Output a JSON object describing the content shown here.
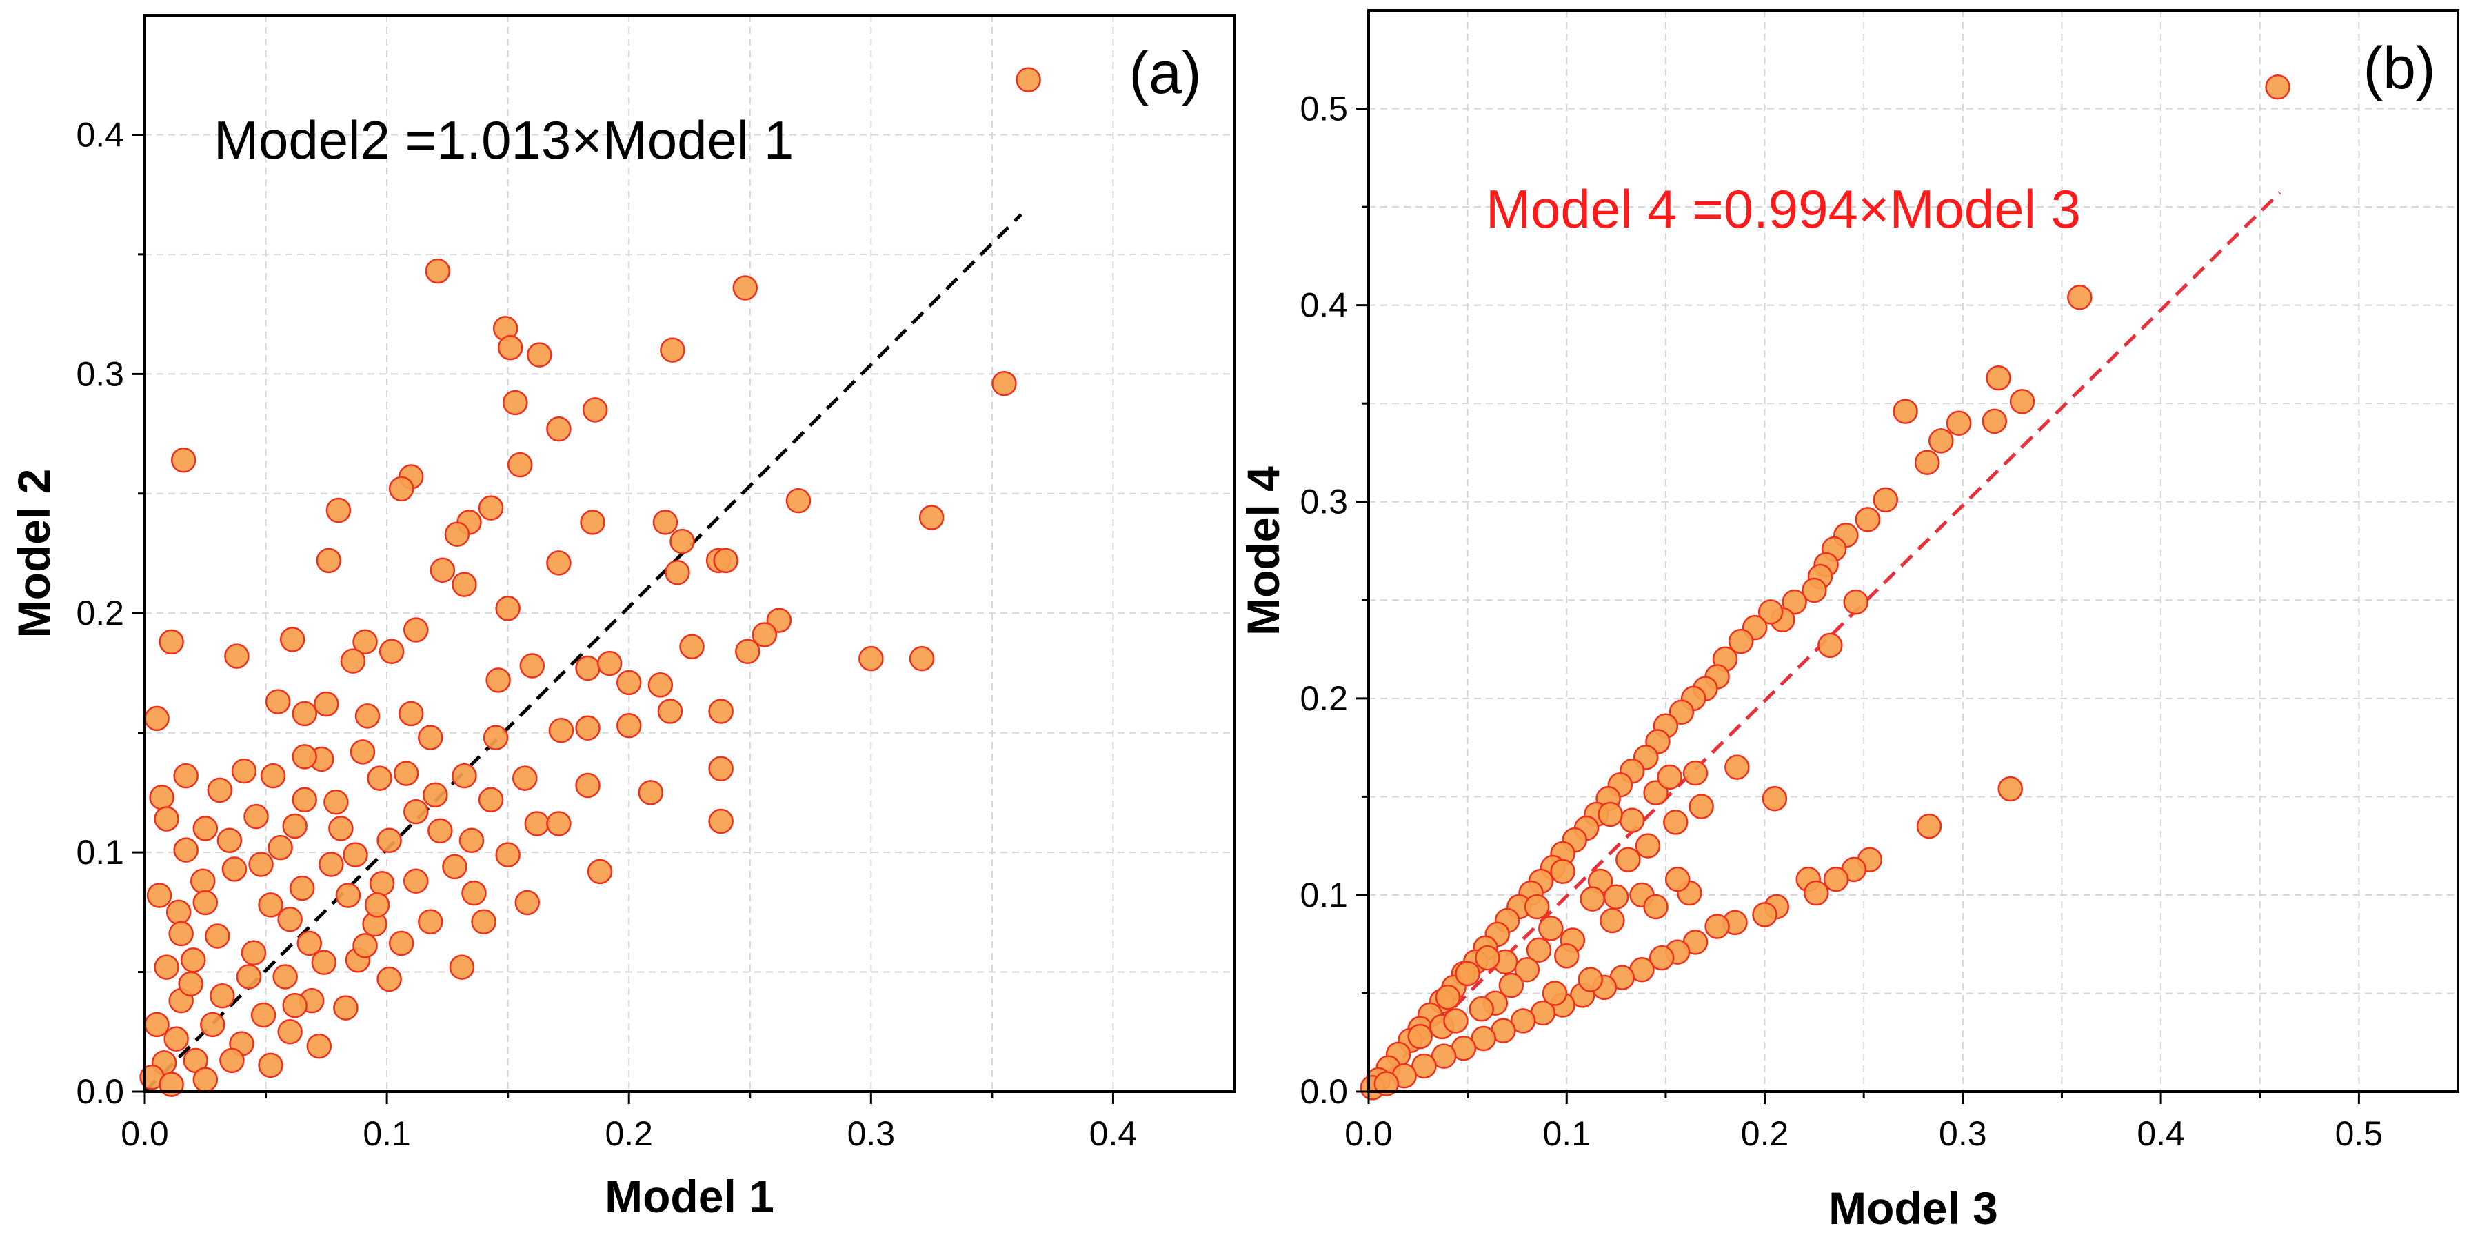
{
  "chart_data": [
    {
      "type": "scatter",
      "panel_label": "(a)",
      "xlabel": "Model 1",
      "ylabel": "Model 2",
      "xlim": [
        0,
        0.45
      ],
      "ylim": [
        0,
        0.45
      ],
      "xticks": [
        0.0,
        0.1,
        0.2,
        0.3,
        0.4
      ],
      "yticks": [
        0.0,
        0.1,
        0.2,
        0.3,
        0.4
      ],
      "xtick_labels": [
        "0.0",
        "0.1",
        "0.2",
        "0.3",
        "0.4"
      ],
      "ytick_labels": [
        "0.0",
        "0.1",
        "0.2",
        "0.3",
        "0.4"
      ],
      "grid": true,
      "annotation": {
        "text": "Model2 =1.013×Model 1",
        "color": "#000000"
      },
      "fit_line": {
        "slope": 1.013,
        "x_range": [
          0,
          0.362
        ],
        "color": "#000000",
        "style": "dashed"
      },
      "marker": {
        "fill": "#f7a04c",
        "edge": "#f0301c"
      },
      "points": [
        [
          0.365,
          0.423
        ],
        [
          0.121,
          0.343
        ],
        [
          0.248,
          0.336
        ],
        [
          0.149,
          0.319
        ],
        [
          0.151,
          0.311
        ],
        [
          0.163,
          0.308
        ],
        [
          0.218,
          0.31
        ],
        [
          0.355,
          0.296
        ],
        [
          0.153,
          0.288
        ],
        [
          0.186,
          0.285
        ],
        [
          0.171,
          0.277
        ],
        [
          0.016,
          0.264
        ],
        [
          0.155,
          0.262
        ],
        [
          0.11,
          0.257
        ],
        [
          0.106,
          0.252
        ],
        [
          0.27,
          0.247
        ],
        [
          0.08,
          0.243
        ],
        [
          0.143,
          0.244
        ],
        [
          0.134,
          0.238
        ],
        [
          0.325,
          0.24
        ],
        [
          0.215,
          0.238
        ],
        [
          0.185,
          0.238
        ],
        [
          0.129,
          0.233
        ],
        [
          0.222,
          0.23
        ],
        [
          0.171,
          0.221
        ],
        [
          0.076,
          0.222
        ],
        [
          0.237,
          0.222
        ],
        [
          0.24,
          0.222
        ],
        [
          0.123,
          0.218
        ],
        [
          0.22,
          0.217
        ],
        [
          0.132,
          0.212
        ],
        [
          0.15,
          0.202
        ],
        [
          0.262,
          0.197
        ],
        [
          0.256,
          0.191
        ],
        [
          0.112,
          0.193
        ],
        [
          0.091,
          0.188
        ],
        [
          0.061,
          0.189
        ],
        [
          0.011,
          0.188
        ],
        [
          0.086,
          0.18
        ],
        [
          0.249,
          0.184
        ],
        [
          0.226,
          0.186
        ],
        [
          0.102,
          0.184
        ],
        [
          0.038,
          0.182
        ],
        [
          0.3,
          0.181
        ],
        [
          0.321,
          0.181
        ],
        [
          0.16,
          0.178
        ],
        [
          0.183,
          0.177
        ],
        [
          0.146,
          0.172
        ],
        [
          0.2,
          0.171
        ],
        [
          0.213,
          0.17
        ],
        [
          0.055,
          0.163
        ],
        [
          0.075,
          0.162
        ],
        [
          0.11,
          0.158
        ],
        [
          0.092,
          0.157
        ],
        [
          0.066,
          0.158
        ],
        [
          0.2,
          0.153
        ],
        [
          0.217,
          0.159
        ],
        [
          0.238,
          0.159
        ],
        [
          0.005,
          0.156
        ],
        [
          0.183,
          0.152
        ],
        [
          0.172,
          0.151
        ],
        [
          0.145,
          0.148
        ],
        [
          0.118,
          0.148
        ],
        [
          0.209,
          0.125
        ],
        [
          0.183,
          0.128
        ],
        [
          0.238,
          0.135
        ],
        [
          0.238,
          0.113
        ],
        [
          0.188,
          0.092
        ],
        [
          0.162,
          0.112
        ],
        [
          0.053,
          0.132
        ],
        [
          0.031,
          0.126
        ],
        [
          0.007,
          0.123
        ],
        [
          0.009,
          0.114
        ],
        [
          0.017,
          0.101
        ],
        [
          0.062,
          0.111
        ],
        [
          0.041,
          0.134
        ],
        [
          0.073,
          0.139
        ],
        [
          0.097,
          0.131
        ],
        [
          0.132,
          0.132
        ],
        [
          0.157,
          0.131
        ],
        [
          0.143,
          0.122
        ],
        [
          0.122,
          0.109
        ],
        [
          0.101,
          0.105
        ],
        [
          0.087,
          0.099
        ],
        [
          0.136,
          0.083
        ],
        [
          0.158,
          0.079
        ],
        [
          0.106,
          0.062
        ],
        [
          0.131,
          0.052
        ],
        [
          0.079,
          0.121
        ],
        [
          0.035,
          0.105
        ],
        [
          0.15,
          0.099
        ],
        [
          0.014,
          0.075
        ],
        [
          0.009,
          0.052
        ],
        [
          0.006,
          0.082
        ],
        [
          0.024,
          0.088
        ],
        [
          0.048,
          0.095
        ],
        [
          0.065,
          0.085
        ],
        [
          0.084,
          0.082
        ],
        [
          0.112,
          0.088
        ],
        [
          0.128,
          0.094
        ],
        [
          0.06,
          0.072
        ],
        [
          0.095,
          0.07
        ],
        [
          0.118,
          0.071
        ],
        [
          0.14,
          0.071
        ],
        [
          0.03,
          0.065
        ],
        [
          0.045,
          0.058
        ],
        [
          0.074,
          0.054
        ],
        [
          0.052,
          0.078
        ],
        [
          0.02,
          0.055
        ],
        [
          0.032,
          0.04
        ],
        [
          0.058,
          0.048
        ],
        [
          0.088,
          0.055
        ],
        [
          0.101,
          0.047
        ],
        [
          0.069,
          0.038
        ],
        [
          0.049,
          0.032
        ],
        [
          0.083,
          0.035
        ],
        [
          0.028,
          0.028
        ],
        [
          0.04,
          0.02
        ],
        [
          0.06,
          0.025
        ],
        [
          0.015,
          0.038
        ],
        [
          0.013,
          0.022
        ],
        [
          0.008,
          0.012
        ],
        [
          0.021,
          0.013
        ],
        [
          0.036,
          0.013
        ],
        [
          0.052,
          0.011
        ],
        [
          0.072,
          0.019
        ],
        [
          0.005,
          0.028
        ],
        [
          0.003,
          0.006
        ],
        [
          0.011,
          0.003
        ],
        [
          0.025,
          0.005
        ],
        [
          0.043,
          0.048
        ],
        [
          0.068,
          0.062
        ],
        [
          0.091,
          0.061
        ],
        [
          0.015,
          0.066
        ],
        [
          0.077,
          0.095
        ],
        [
          0.056,
          0.102
        ],
        [
          0.025,
          0.079
        ],
        [
          0.098,
          0.087
        ],
        [
          0.135,
          0.105
        ],
        [
          0.112,
          0.117
        ],
        [
          0.081,
          0.11
        ],
        [
          0.066,
          0.122
        ],
        [
          0.046,
          0.115
        ],
        [
          0.12,
          0.124
        ],
        [
          0.037,
          0.093
        ],
        [
          0.019,
          0.045
        ],
        [
          0.062,
          0.036
        ],
        [
          0.096,
          0.078
        ],
        [
          0.171,
          0.112
        ],
        [
          0.192,
          0.179
        ],
        [
          0.108,
          0.133
        ],
        [
          0.09,
          0.142
        ],
        [
          0.066,
          0.14
        ],
        [
          0.025,
          0.11
        ],
        [
          0.017,
          0.132
        ]
      ]
    },
    {
      "type": "scatter",
      "panel_label": "(b)",
      "xlabel": "Model 3",
      "ylabel": "Model 4",
      "xlim": [
        0,
        0.55
      ],
      "ylim": [
        0,
        0.55
      ],
      "xticks": [
        0.0,
        0.1,
        0.2,
        0.3,
        0.4,
        0.5
      ],
      "yticks": [
        0.0,
        0.1,
        0.2,
        0.3,
        0.4,
        0.5
      ],
      "xtick_labels": [
        "0.0",
        "0.1",
        "0.2",
        "0.3",
        "0.4",
        "0.5"
      ],
      "ytick_labels": [
        "0.0",
        "0.1",
        "0.2",
        "0.3",
        "0.4",
        "0.5"
      ],
      "grid": true,
      "annotation": {
        "text": "Model 4 =0.994×Model 3",
        "color": "#ff1a1a"
      },
      "fit_line": {
        "slope": 0.994,
        "x_range": [
          0,
          0.46
        ],
        "color": "#e8303a",
        "style": "dashed"
      },
      "marker": {
        "fill": "#f7a04c",
        "edge": "#f0301c"
      },
      "points": [
        [
          0.459,
          0.511
        ],
        [
          0.359,
          0.404
        ],
        [
          0.33,
          0.351
        ],
        [
          0.318,
          0.363
        ],
        [
          0.316,
          0.341
        ],
        [
          0.298,
          0.34
        ],
        [
          0.271,
          0.346
        ],
        [
          0.289,
          0.331
        ],
        [
          0.282,
          0.32
        ],
        [
          0.261,
          0.301
        ],
        [
          0.252,
          0.291
        ],
        [
          0.241,
          0.283
        ],
        [
          0.235,
          0.276
        ],
        [
          0.231,
          0.268
        ],
        [
          0.228,
          0.262
        ],
        [
          0.225,
          0.255
        ],
        [
          0.215,
          0.249
        ],
        [
          0.209,
          0.24
        ],
        [
          0.203,
          0.244
        ],
        [
          0.195,
          0.236
        ],
        [
          0.188,
          0.229
        ],
        [
          0.18,
          0.22
        ],
        [
          0.176,
          0.211
        ],
        [
          0.17,
          0.205
        ],
        [
          0.164,
          0.2
        ],
        [
          0.158,
          0.193
        ],
        [
          0.15,
          0.186
        ],
        [
          0.146,
          0.178
        ],
        [
          0.14,
          0.17
        ],
        [
          0.133,
          0.163
        ],
        [
          0.127,
          0.156
        ],
        [
          0.121,
          0.149
        ],
        [
          0.115,
          0.141
        ],
        [
          0.11,
          0.134
        ],
        [
          0.104,
          0.128
        ],
        [
          0.098,
          0.121
        ],
        [
          0.093,
          0.114
        ],
        [
          0.087,
          0.107
        ],
        [
          0.082,
          0.101
        ],
        [
          0.076,
          0.094
        ],
        [
          0.07,
          0.087
        ],
        [
          0.065,
          0.08
        ],
        [
          0.059,
          0.073
        ],
        [
          0.054,
          0.066
        ],
        [
          0.048,
          0.06
        ],
        [
          0.043,
          0.053
        ],
        [
          0.037,
          0.046
        ],
        [
          0.031,
          0.039
        ],
        [
          0.026,
          0.032
        ],
        [
          0.021,
          0.026
        ],
        [
          0.015,
          0.019
        ],
        [
          0.01,
          0.012
        ],
        [
          0.005,
          0.006
        ],
        [
          0.002,
          0.002
        ],
        [
          0.117,
          0.107
        ],
        [
          0.131,
          0.118
        ],
        [
          0.141,
          0.125
        ],
        [
          0.155,
          0.137
        ],
        [
          0.168,
          0.145
        ],
        [
          0.186,
          0.165
        ],
        [
          0.246,
          0.249
        ],
        [
          0.233,
          0.227
        ],
        [
          0.165,
          0.162
        ],
        [
          0.205,
          0.149
        ],
        [
          0.324,
          0.154
        ],
        [
          0.283,
          0.135
        ],
        [
          0.222,
          0.108
        ],
        [
          0.253,
          0.118
        ],
        [
          0.245,
          0.113
        ],
        [
          0.236,
          0.108
        ],
        [
          0.226,
          0.101
        ],
        [
          0.206,
          0.094
        ],
        [
          0.2,
          0.09
        ],
        [
          0.185,
          0.086
        ],
        [
          0.176,
          0.084
        ],
        [
          0.165,
          0.076
        ],
        [
          0.156,
          0.071
        ],
        [
          0.148,
          0.068
        ],
        [
          0.138,
          0.062
        ],
        [
          0.128,
          0.058
        ],
        [
          0.119,
          0.053
        ],
        [
          0.108,
          0.049
        ],
        [
          0.098,
          0.044
        ],
        [
          0.088,
          0.04
        ],
        [
          0.078,
          0.036
        ],
        [
          0.068,
          0.031
        ],
        [
          0.058,
          0.027
        ],
        [
          0.048,
          0.022
        ],
        [
          0.038,
          0.018
        ],
        [
          0.028,
          0.013
        ],
        [
          0.018,
          0.008
        ],
        [
          0.009,
          0.004
        ],
        [
          0.162,
          0.101
        ],
        [
          0.138,
          0.1
        ],
        [
          0.123,
          0.087
        ],
        [
          0.103,
          0.077
        ],
        [
          0.086,
          0.072
        ],
        [
          0.069,
          0.066
        ],
        [
          0.05,
          0.06
        ],
        [
          0.064,
          0.045
        ],
        [
          0.094,
          0.05
        ],
        [
          0.112,
          0.057
        ],
        [
          0.145,
          0.094
        ],
        [
          0.156,
          0.108
        ],
        [
          0.125,
          0.099
        ],
        [
          0.037,
          0.033
        ],
        [
          0.026,
          0.028
        ],
        [
          0.08,
          0.062
        ],
        [
          0.072,
          0.054
        ],
        [
          0.057,
          0.042
        ],
        [
          0.044,
          0.036
        ],
        [
          0.092,
          0.083
        ],
        [
          0.1,
          0.069
        ],
        [
          0.113,
          0.098
        ],
        [
          0.133,
          0.138
        ],
        [
          0.145,
          0.152
        ],
        [
          0.152,
          0.16
        ],
        [
          0.122,
          0.141
        ],
        [
          0.098,
          0.112
        ],
        [
          0.085,
          0.094
        ],
        [
          0.06,
          0.068
        ],
        [
          0.04,
          0.048
        ]
      ]
    }
  ]
}
